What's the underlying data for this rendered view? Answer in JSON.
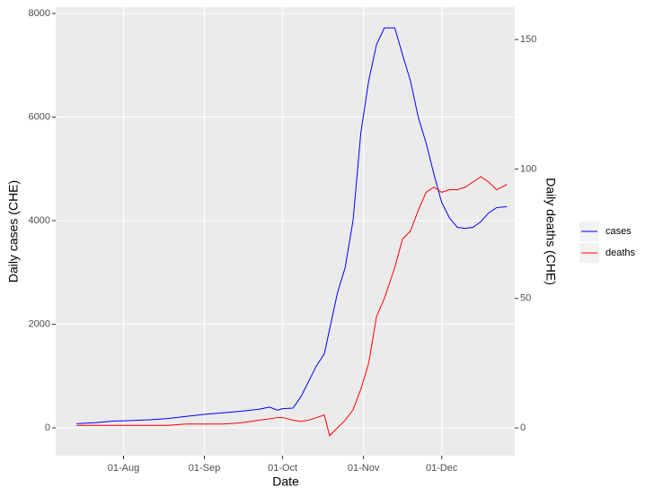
{
  "chart_data": {
    "type": "line",
    "x_label": "Date",
    "y_label": "Daily cases (CHE)",
    "y2_label": "Daily deaths (CHE)",
    "x": [
      "14-Jul",
      "21-Jul",
      "28-Jul",
      "04-Aug",
      "11-Aug",
      "18-Aug",
      "25-Aug",
      "01-Sep",
      "08-Sep",
      "15-Sep",
      "22-Sep",
      "26-Sep",
      "29-Sep",
      "01-Oct",
      "05-Oct",
      "08-Oct",
      "11-Oct",
      "14-Oct",
      "17-Oct",
      "19-Oct",
      "22-Oct",
      "25-Oct",
      "28-Oct",
      "31-Oct",
      "03-Nov",
      "06-Nov",
      "09-Nov",
      "13-Nov",
      "16-Nov",
      "19-Nov",
      "22-Nov",
      "25-Nov",
      "28-Nov",
      "01-Dec",
      "04-Dec",
      "07-Dec",
      "10-Dec",
      "13-Dec",
      "16-Dec",
      "19-Dec",
      "22-Dec",
      "26-Dec"
    ],
    "series": [
      {
        "name": "cases",
        "color": "#0000ff",
        "axis": "y",
        "values": [
          80,
          100,
          130,
          140,
          155,
          180,
          220,
          260,
          290,
          320,
          360,
          400,
          340,
          370,
          380,
          600,
          900,
          1200,
          1430,
          1900,
          2600,
          3100,
          4000,
          5700,
          6700,
          7400,
          7720,
          7720,
          7200,
          6700,
          6000,
          5500,
          4900,
          4350,
          4050,
          3870,
          3850,
          3870,
          3980,
          4150,
          4250,
          4270
        ]
      },
      {
        "name": "deaths",
        "color": "#ff0000",
        "axis": "y2",
        "values": [
          1,
          1,
          1,
          1,
          1,
          1,
          1.5,
          1.5,
          1.5,
          2,
          3,
          3.5,
          4,
          4,
          3,
          2.5,
          3,
          4,
          5,
          -3,
          0,
          3,
          7,
          15,
          25,
          43,
          50,
          62,
          73,
          76,
          84,
          91,
          93,
          91,
          92,
          92,
          93,
          95,
          97,
          95,
          92,
          94
        ]
      }
    ],
    "xlim": [
      "06-Jul",
      "29-Dec"
    ],
    "xticks": [
      "01-Aug",
      "01-Sep",
      "01-Oct",
      "01-Nov",
      "01-Dec"
    ],
    "ylim": [
      -537,
      8121
    ],
    "yticks": [
      0,
      2000,
      4000,
      6000,
      8000
    ],
    "y2lim": [
      -10.7,
      162.5
    ],
    "y2ticks": [
      0,
      50,
      100,
      150
    ],
    "grid": true,
    "legend": "right"
  }
}
